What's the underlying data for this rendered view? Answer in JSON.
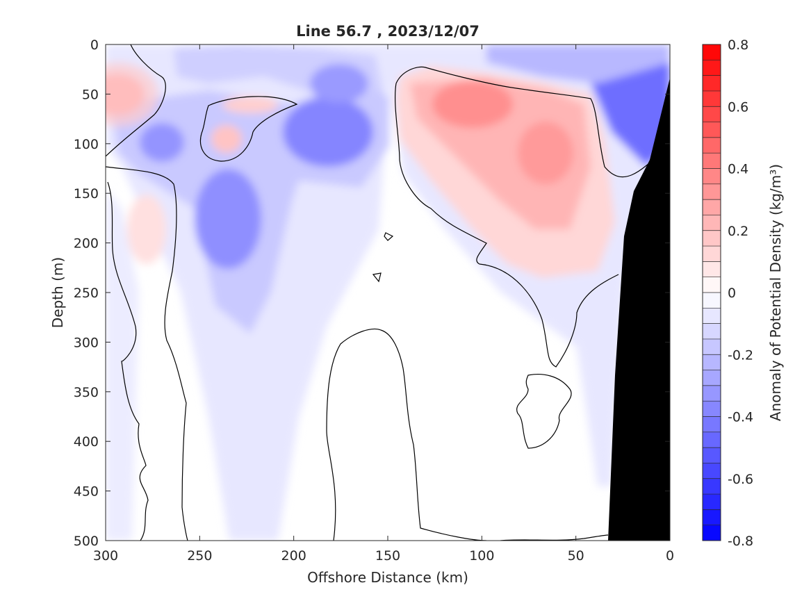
{
  "chart_data": {
    "type": "heatmap",
    "title": "Line 56.7 , 2023/12/07",
    "xlabel": "Offshore Distance (km)",
    "ylabel": "Depth (m)",
    "colorbar_label": "Anomaly of Potential Density (kg/m³)",
    "xlim": [
      300,
      0
    ],
    "ylim": [
      500,
      0
    ],
    "x_reversed": true,
    "y_reversed": true,
    "xticks": [
      300,
      250,
      200,
      150,
      100,
      50,
      0
    ],
    "yticks": [
      0,
      50,
      100,
      150,
      200,
      250,
      300,
      350,
      400,
      450,
      500
    ],
    "colorbar": {
      "range": [
        -0.8,
        0.8
      ],
      "step": 0.05,
      "ticks": [
        "0.8",
        "0.6",
        "0.4",
        "0.2",
        "0",
        "-0.2",
        "-0.4",
        "-0.6",
        "-0.8"
      ],
      "positive_color": "#ff0000",
      "negative_color": "#0000ff",
      "zero_color": "#ffffff"
    },
    "grid": false,
    "land_mask_color": "#000000",
    "anomaly_features": [
      {
        "sign": "positive",
        "x_km": 100,
        "depth_m": 60,
        "peak": 0.3
      },
      {
        "sign": "positive",
        "x_km": 65,
        "depth_m": 110,
        "peak": 0.3
      },
      {
        "sign": "positive",
        "x_km": 295,
        "depth_m": 50,
        "peak": 0.3
      },
      {
        "sign": "positive",
        "x_km": 220,
        "depth_m": 60,
        "peak": 0.15
      },
      {
        "sign": "positive",
        "x_km": 235,
        "depth_m": 95,
        "peak": 0.15
      },
      {
        "sign": "positive",
        "x_km": 275,
        "depth_m": 190,
        "peak": 0.1
      },
      {
        "sign": "negative",
        "x_km": 235,
        "depth_m": 175,
        "peak": -0.4
      },
      {
        "sign": "negative",
        "x_km": 180,
        "depth_m": 80,
        "peak": -0.45
      },
      {
        "sign": "negative",
        "x_km": 175,
        "depth_m": 40,
        "peak": -0.35
      },
      {
        "sign": "negative",
        "x_km": 270,
        "depth_m": 100,
        "peak": -0.35
      },
      {
        "sign": "negative",
        "x_km": 15,
        "depth_m": 50,
        "peak": -0.55
      },
      {
        "sign": "negative",
        "x_km": 70,
        "depth_m": 25,
        "peak": -0.3
      },
      {
        "sign": "negative",
        "x_km": 220,
        "depth_m": 330,
        "peak": -0.1
      }
    ]
  }
}
